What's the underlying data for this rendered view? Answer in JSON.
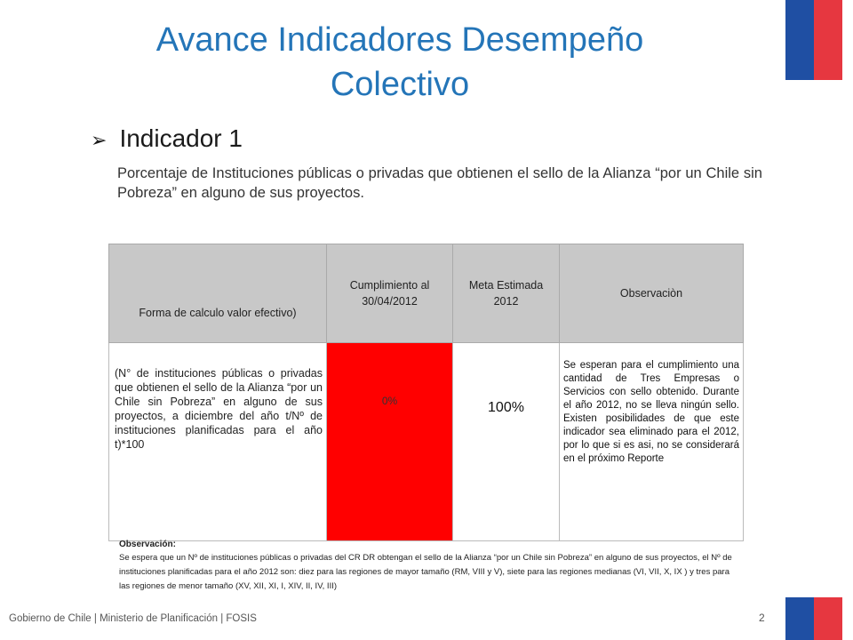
{
  "title": "Avance Indicadores Desempeño Colectivo",
  "indicator": {
    "heading": "Indicador 1",
    "description": "Porcentaje de Instituciones  públicas o privadas que obtienen   el sello de la Alianza “por un Chile sin Pobreza” en alguno de sus proyectos."
  },
  "table": {
    "headers": [
      "Forma de calculo valor efectivo)",
      "Cumplimiento al 30/04/2012",
      "Meta Estimada 2012",
      "Observaciòn"
    ],
    "row": {
      "formula": "(N° de instituciones públicas o privadas que obtienen el sello de la Alianza “por un Chile sin Pobreza” en alguno de sus proyectos, a diciembre del año t/Nº de instituciones planificadas para el año t)*100",
      "cumplimiento": "0%",
      "meta": "100%",
      "observacion": "Se esperan para el cumplimiento una cantidad de Tres Empresas o Servicios con sello obtenido. Durante el año 2012, no se lleva ningún sello. Existen posibilidades de que este indicador sea eliminado para el 2012, por lo que si es asi, no se considerará en el próximo Reporte"
    },
    "status_color": "#ff0000"
  },
  "observation": {
    "title": "Observación:",
    "text": "Se espera que un Nº de instituciones públicas o privadas del CR DR obtengan el sello de la Alianza “por un Chile sin Pobreza” en alguno de sus proyectos, el Nº de instituciones planificadas para el año 2012 son: diez para las regiones de mayor tamaño (RM, VIII y V), siete para las regiones medianas (VI, VII, X, IX ) y tres para las regiones de menor tamaño (XV, XII, XI, I, XIV, II, IV, III)"
  },
  "footer": {
    "text": "Gobierno de Chile | Ministerio de Planificación | FOSIS",
    "page_number": "2"
  },
  "colors": {
    "title": "#2475b8",
    "flag_blue": "#1f4fa3",
    "flag_red": "#e63740",
    "header_bg": "#c8c8c8"
  },
  "icons": {
    "bullet": "arrow-bullet-icon"
  }
}
